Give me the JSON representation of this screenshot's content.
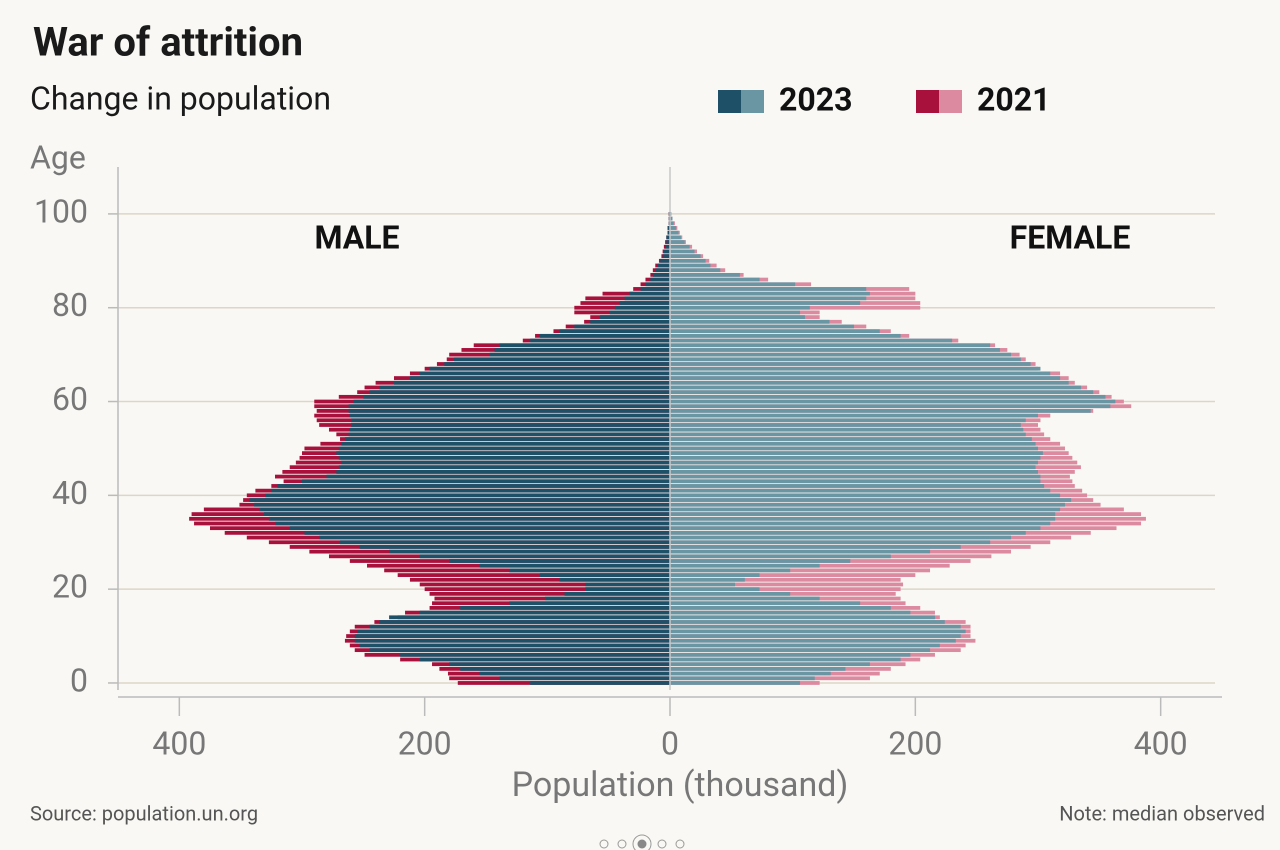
{
  "chart_data": {
    "type": "pyramid",
    "title": "War of attrition",
    "subtitle": "Change in population",
    "y_label": "Age",
    "x_label": "Population (thousand)",
    "left_label": "MALE",
    "right_label": "FEMALE",
    "source": "Source: population.un.org",
    "note": "Note: median observed",
    "y": [
      0,
      1,
      2,
      3,
      4,
      5,
      6,
      7,
      8,
      9,
      10,
      11,
      12,
      13,
      14,
      15,
      16,
      17,
      18,
      19,
      20,
      21,
      22,
      23,
      24,
      25,
      26,
      27,
      28,
      29,
      30,
      31,
      32,
      33,
      34,
      35,
      36,
      37,
      38,
      39,
      40,
      41,
      42,
      43,
      44,
      45,
      46,
      47,
      48,
      49,
      50,
      51,
      52,
      53,
      54,
      55,
      56,
      57,
      58,
      59,
      60,
      61,
      62,
      63,
      64,
      65,
      66,
      67,
      68,
      69,
      70,
      71,
      72,
      73,
      74,
      75,
      76,
      77,
      78,
      79,
      80,
      81,
      82,
      83,
      84,
      85,
      86,
      87,
      88,
      89,
      90,
      91,
      92,
      93,
      94,
      95,
      96,
      97,
      98,
      99,
      100
    ],
    "xlim": [
      -450,
      450
    ],
    "xticks": [
      {
        "value": -400,
        "label": "400"
      },
      {
        "value": -200,
        "label": "200"
      },
      0,
      200,
      400
    ],
    "ylim": [
      -1.5,
      110
    ],
    "yticks": [
      0,
      20,
      40,
      60,
      80,
      100
    ],
    "grid": true,
    "series": [
      {
        "name": "2023",
        "male_color": "#1e5068",
        "female_color": "#6a96a4",
        "male": [
          -114,
          -139,
          -155,
          -171,
          -180,
          -204,
          -220,
          -245,
          -253,
          -257,
          -257,
          -255,
          -245,
          -237,
          -229,
          -204,
          -171,
          -131,
          -102,
          -86,
          -69,
          -69,
          -90,
          -106,
          -131,
          -155,
          -180,
          -204,
          -229,
          -253,
          -269,
          -286,
          -298,
          -310,
          -322,
          -327,
          -331,
          -335,
          -339,
          -343,
          -330,
          -325,
          -320,
          -300,
          -280,
          -272,
          -270,
          -268,
          -270,
          -272,
          -270,
          -268,
          -265,
          -262,
          -261,
          -260,
          -260,
          -261,
          -262,
          -262,
          -258,
          -250,
          -245,
          -237,
          -225,
          -212,
          -204,
          -196,
          -184,
          -176,
          -147,
          -143,
          -139,
          -114,
          -106,
          -90,
          -78,
          -65,
          -57,
          -49,
          -45,
          -41,
          -37,
          -33,
          -24,
          -20,
          -16,
          -14,
          -12,
          -10,
          -8,
          -6,
          -5,
          -4,
          -3,
          -3,
          -2,
          -2,
          -1,
          -1,
          -1
        ],
        "female": [
          106,
          118,
          131,
          143,
          163,
          188,
          196,
          212,
          220,
          233,
          237,
          241,
          237,
          224,
          216,
          196,
          180,
          155,
          122,
          98,
          73,
          53,
          61,
          73,
          98,
          122,
          147,
          180,
          212,
          237,
          261,
          278,
          290,
          302,
          310,
          314,
          314,
          318,
          322,
          327,
          318,
          310,
          305,
          302,
          302,
          300,
          298,
          300,
          302,
          304,
          300,
          298,
          295,
          290,
          288,
          286,
          290,
          300,
          343,
          359,
          363,
          355,
          345,
          335,
          325,
          318,
          310,
          302,
          294,
          286,
          278,
          269,
          261,
          230,
          188,
          171,
          150,
          130,
          110,
          106,
          114,
          155,
          160,
          163,
          160,
          102,
          73,
          57,
          41,
          33,
          29,
          25,
          20,
          16,
          12,
          9,
          7,
          5,
          3,
          2,
          1
        ]
      },
      {
        "name": "2021",
        "male_color": "#a8113c",
        "female_color": "#dc8aa0",
        "male": [
          -173,
          -180,
          -181,
          -188,
          -194,
          -220,
          -249,
          -257,
          -261,
          -265,
          -264,
          -261,
          -257,
          -241,
          -222,
          -216,
          -196,
          -194,
          -192,
          -196,
          -200,
          -204,
          -212,
          -222,
          -233,
          -247,
          -261,
          -278,
          -294,
          -310,
          -327,
          -345,
          -363,
          -375,
          -388,
          -392,
          -390,
          -380,
          -351,
          -348,
          -345,
          -338,
          -325,
          -315,
          -322,
          -316,
          -310,
          -305,
          -302,
          -300,
          -298,
          -285,
          -269,
          -272,
          -278,
          -286,
          -288,
          -290,
          -288,
          -290,
          -290,
          -270,
          -255,
          -249,
          -240,
          -225,
          -212,
          -200,
          -190,
          -182,
          -180,
          -170,
          -160,
          -120,
          -110,
          -95,
          -85,
          -70,
          -65,
          -78,
          -78,
          -73,
          -69,
          -55,
          -30,
          -24,
          -20,
          -16,
          -14,
          -12,
          -9,
          -7,
          -6,
          -5,
          -4,
          -3,
          -2,
          -2,
          -1,
          -1,
          -1
        ],
        "female": [
          122,
          163,
          171,
          180,
          192,
          204,
          216,
          237,
          241,
          249,
          245,
          245,
          245,
          241,
          220,
          216,
          204,
          192,
          188,
          184,
          188,
          190,
          188,
          200,
          212,
          228,
          245,
          262,
          278,
          294,
          310,
          327,
          343,
          364,
          384,
          388,
          384,
          370,
          351,
          345,
          340,
          336,
          330,
          328,
          326,
          330,
          335,
          332,
          328,
          325,
          322,
          318,
          310,
          305,
          302,
          300,
          302,
          310,
          345,
          376,
          370,
          360,
          350,
          340,
          330,
          325,
          318,
          300,
          298,
          290,
          285,
          275,
          265,
          235,
          195,
          180,
          160,
          140,
          122,
          122,
          204,
          204,
          200,
          200,
          195,
          115,
          80,
          60,
          45,
          38,
          32,
          27,
          22,
          18,
          13,
          10,
          8,
          6,
          4,
          2,
          1
        ]
      }
    ]
  }
}
